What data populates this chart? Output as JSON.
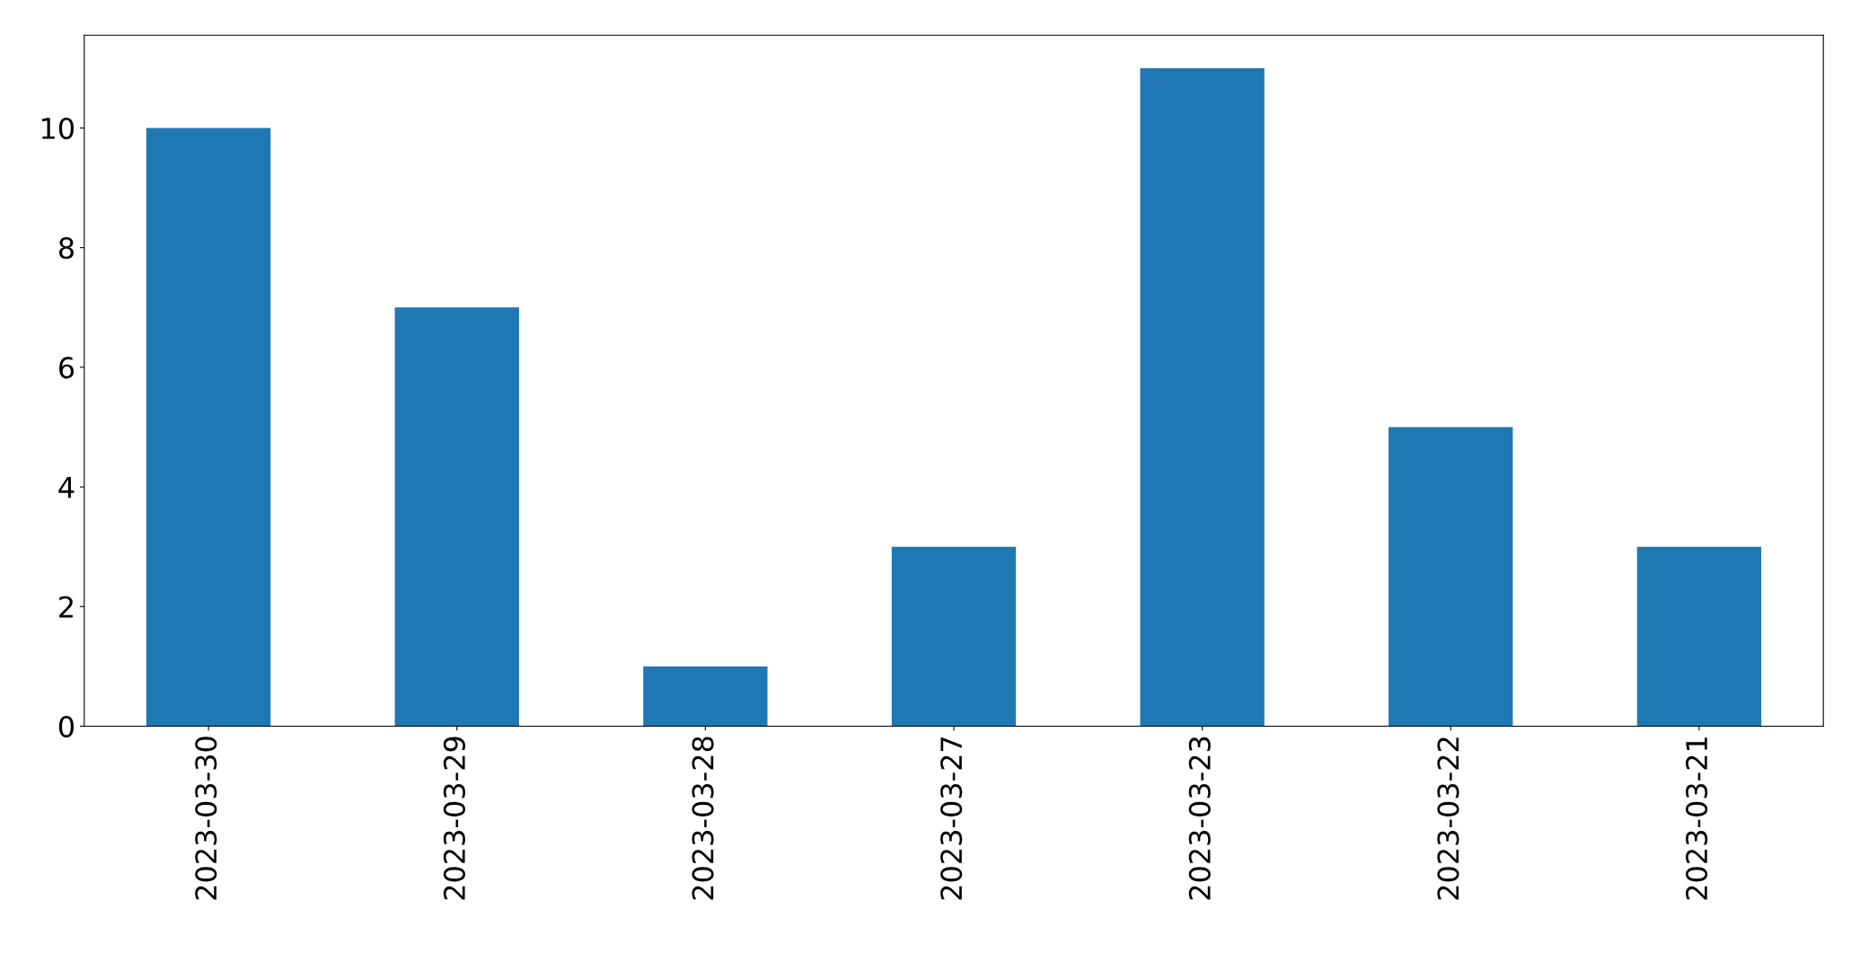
{
  "chart_data": {
    "type": "bar",
    "categories": [
      "2023-03-30",
      "2023-03-29",
      "2023-03-28",
      "2023-03-27",
      "2023-03-23",
      "2023-03-22",
      "2023-03-21"
    ],
    "values": [
      10,
      7,
      1,
      3,
      11,
      5,
      3
    ],
    "color": "#1f77b4",
    "ylim": [
      0,
      11.55
    ],
    "yticks": [
      0,
      2,
      4,
      6,
      8,
      10
    ],
    "grid": false,
    "legend": false
  }
}
